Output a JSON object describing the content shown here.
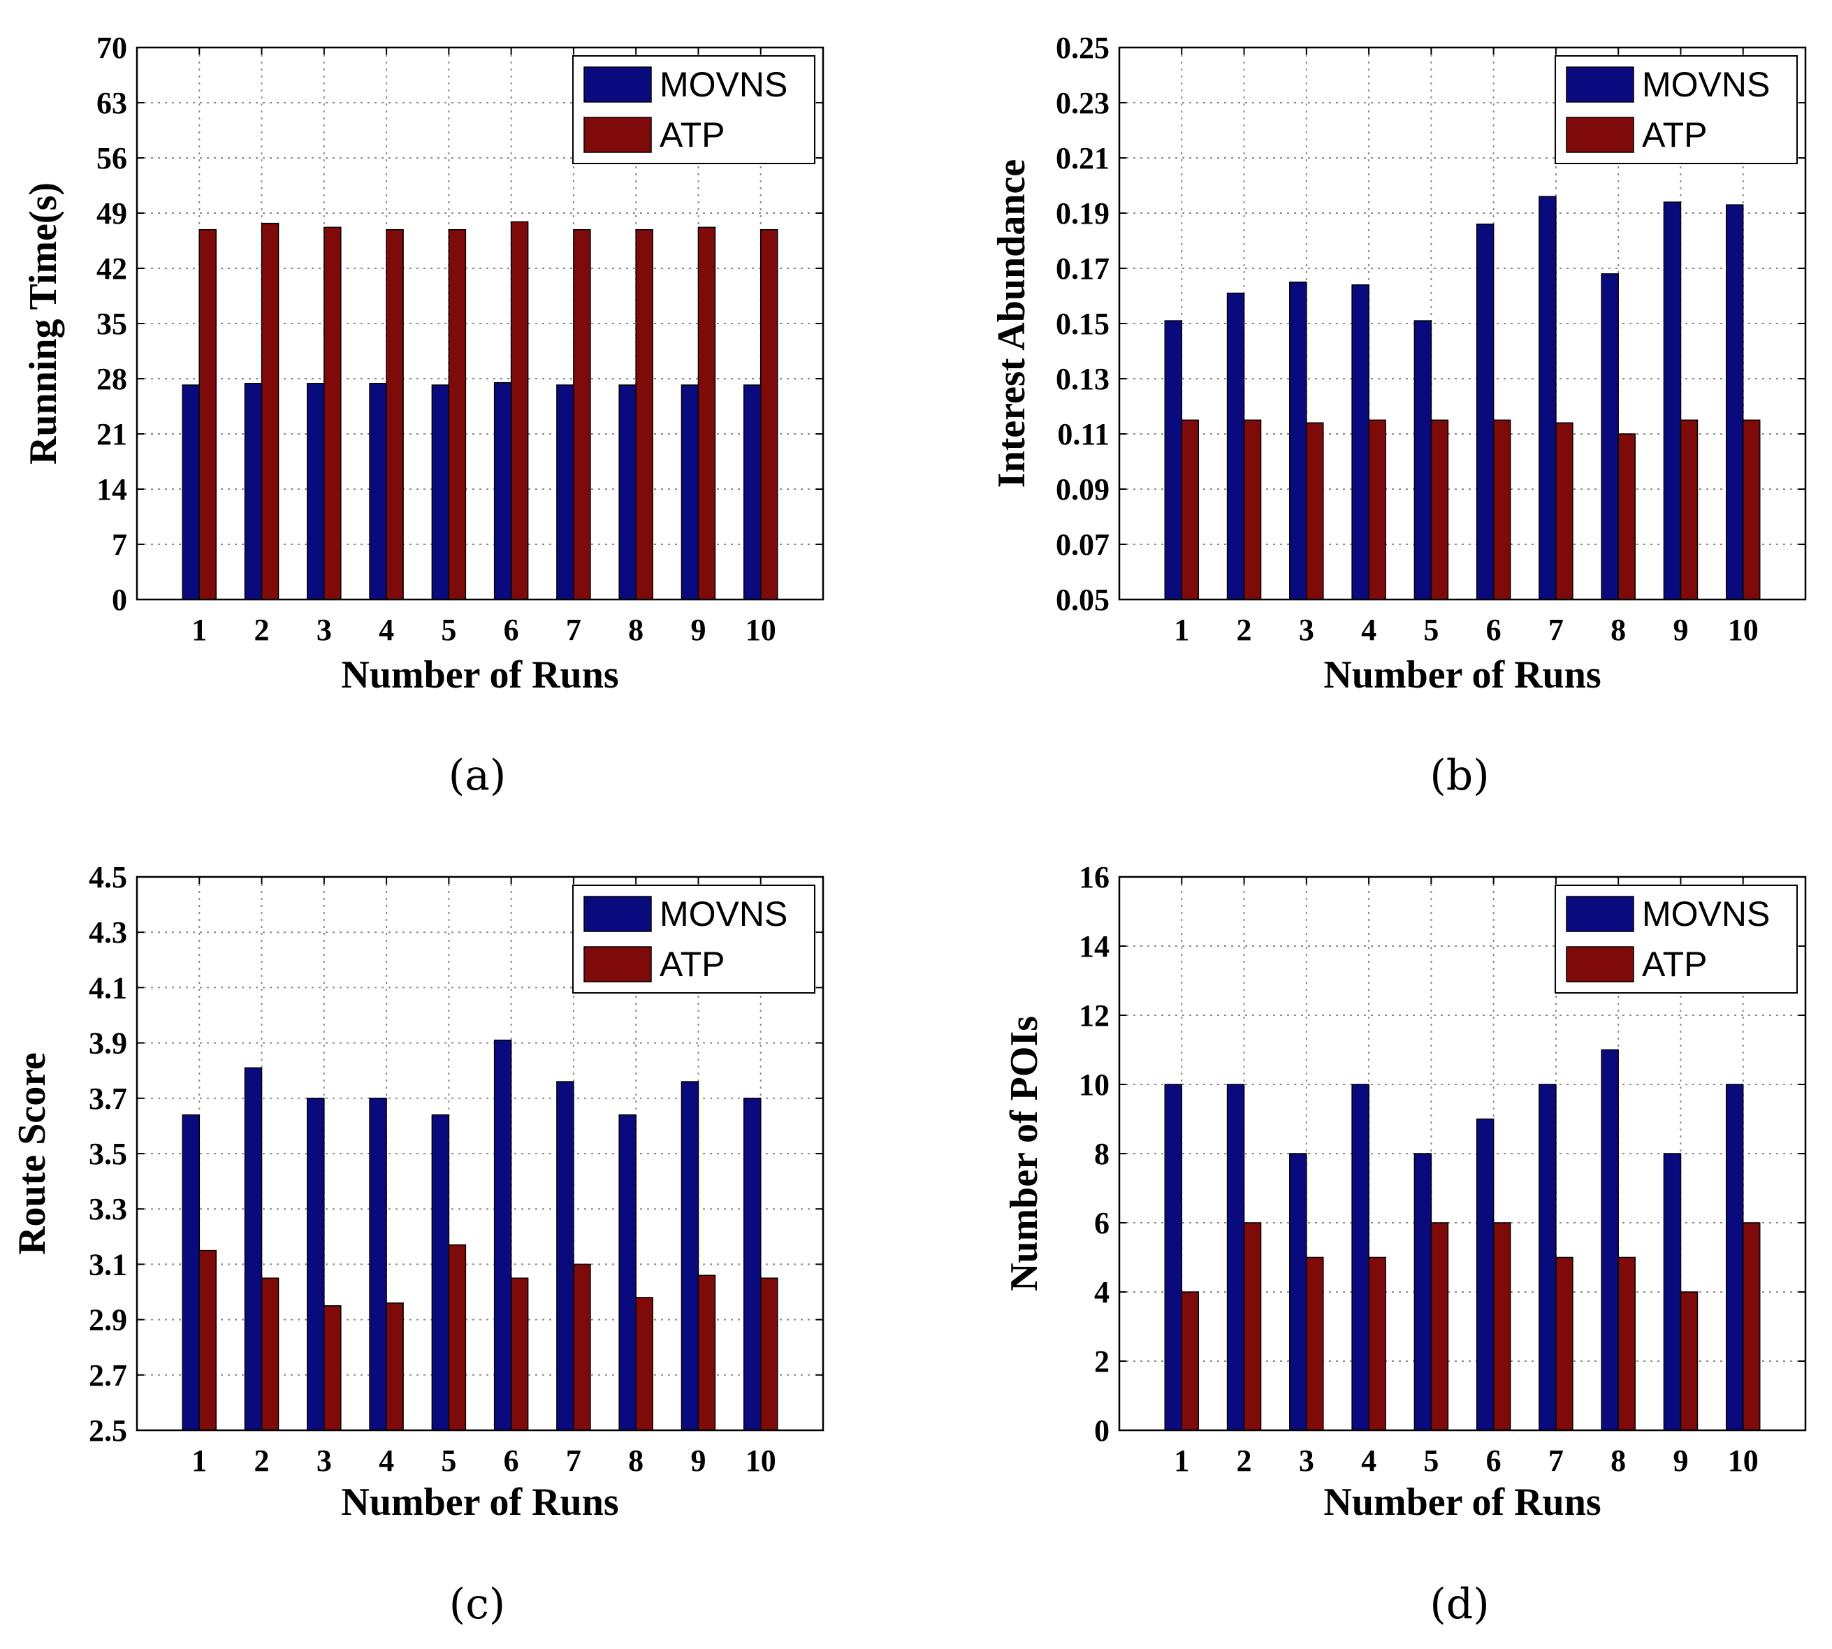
{
  "figure": {
    "colors": {
      "movns": "#0a0a7f",
      "atp": "#7f0a0a",
      "grid": "#8a8a8a"
    }
  },
  "chart_data": [
    {
      "panel_label": "(a)",
      "type": "bar",
      "title": "",
      "xlabel": "Number of Runs",
      "ylabel": "Running Time(s)",
      "categories": [
        "1",
        "2",
        "3",
        "4",
        "5",
        "6",
        "7",
        "8",
        "9",
        "10"
      ],
      "ylim": [
        0,
        70
      ],
      "yticks": [
        "0",
        "7",
        "14",
        "21",
        "28",
        "35",
        "42",
        "49",
        "56",
        "63",
        "70"
      ],
      "grid": true,
      "legend_position": "top-right",
      "series": [
        {
          "name": "MOVNS",
          "values": [
            27.2,
            27.4,
            27.4,
            27.4,
            27.2,
            27.5,
            27.2,
            27.2,
            27.2,
            27.2
          ]
        },
        {
          "name": "ATP",
          "values": [
            46.9,
            47.7,
            47.2,
            46.9,
            46.9,
            47.9,
            46.9,
            46.9,
            47.2,
            46.9
          ]
        }
      ]
    },
    {
      "panel_label": "(b)",
      "type": "bar",
      "title": "",
      "xlabel": "Number of Runs",
      "ylabel": "Interest Abundance",
      "categories": [
        "1",
        "2",
        "3",
        "4",
        "5",
        "6",
        "7",
        "8",
        "9",
        "10"
      ],
      "ylim": [
        0.05,
        0.25
      ],
      "yticks": [
        "0.05",
        "0.07",
        "0.09",
        "0.11",
        "0.13",
        "0.15",
        "0.17",
        "0.19",
        "0.21",
        "0.23",
        "0.25"
      ],
      "grid": true,
      "legend_position": "top-right",
      "series": [
        {
          "name": "MOVNS",
          "values": [
            0.151,
            0.161,
            0.165,
            0.164,
            0.151,
            0.186,
            0.196,
            0.168,
            0.194,
            0.193
          ]
        },
        {
          "name": "ATP",
          "values": [
            0.115,
            0.115,
            0.114,
            0.115,
            0.115,
            0.115,
            0.114,
            0.11,
            0.115,
            0.115
          ]
        }
      ]
    },
    {
      "panel_label": "(c)",
      "type": "bar",
      "title": "",
      "xlabel": "Number of Runs",
      "ylabel": "Route Score",
      "categories": [
        "1",
        "2",
        "3",
        "4",
        "5",
        "6",
        "7",
        "8",
        "9",
        "10"
      ],
      "ylim": [
        2.5,
        4.5
      ],
      "yticks": [
        "2.5",
        "2.7",
        "2.9",
        "3.1",
        "3.3",
        "3.5",
        "3.7",
        "3.9",
        "4.1",
        "4.3",
        "4.5"
      ],
      "grid": true,
      "legend_position": "top-right",
      "series": [
        {
          "name": "MOVNS",
          "values": [
            3.64,
            3.81,
            3.7,
            3.7,
            3.64,
            3.91,
            3.76,
            3.64,
            3.76,
            3.7
          ]
        },
        {
          "name": "ATP",
          "values": [
            3.15,
            3.05,
            2.95,
            2.96,
            3.17,
            3.05,
            3.1,
            2.98,
            3.06,
            3.05
          ]
        }
      ]
    },
    {
      "panel_label": "(d)",
      "type": "bar",
      "title": "",
      "xlabel": "Number of Runs",
      "ylabel": "Number of POIs",
      "categories": [
        "1",
        "2",
        "3",
        "4",
        "5",
        "6",
        "7",
        "8",
        "9",
        "10"
      ],
      "ylim": [
        0,
        16
      ],
      "yticks": [
        "0",
        "2",
        "4",
        "6",
        "8",
        "10",
        "12",
        "14",
        "16"
      ],
      "grid": true,
      "legend_position": "top-right",
      "series": [
        {
          "name": "MOVNS",
          "values": [
            10,
            10,
            8,
            10,
            8,
            9,
            10,
            11,
            8,
            10
          ]
        },
        {
          "name": "ATP",
          "values": [
            4,
            6,
            5,
            5,
            6,
            6,
            5,
            5,
            4,
            6
          ]
        }
      ]
    }
  ]
}
